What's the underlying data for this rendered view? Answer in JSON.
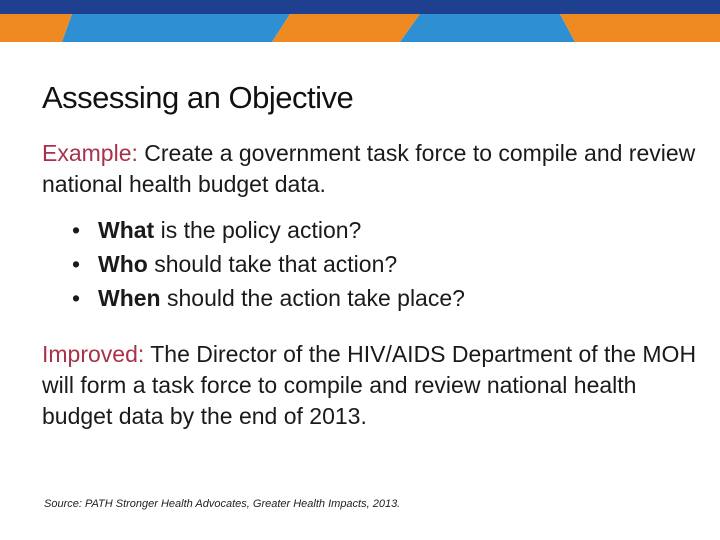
{
  "slide": {
    "title": "Assessing an Objective",
    "example": {
      "lead": "Example:",
      "text": "Create a government task force to compile and review national health budget data."
    },
    "bullets": [
      {
        "keyword": "What",
        "rest": "is the policy action?"
      },
      {
        "keyword": "Who",
        "rest": "should take that action?"
      },
      {
        "keyword": "When",
        "rest": "should the action take place?"
      }
    ],
    "improved": {
      "lead": "Improved:",
      "text": "The Director of the HIV/AIDS Department of the MOH will form a task force to compile and review national health budget data by the end of 2013."
    },
    "source": "Source: PATH Stronger Health Advocates, Greater Health Impacts, 2013."
  },
  "colors": {
    "navy": "#1f3f8f",
    "blue": "#2f8fd3",
    "orange": "#ef8a22",
    "lead_red": "#a8324a"
  }
}
